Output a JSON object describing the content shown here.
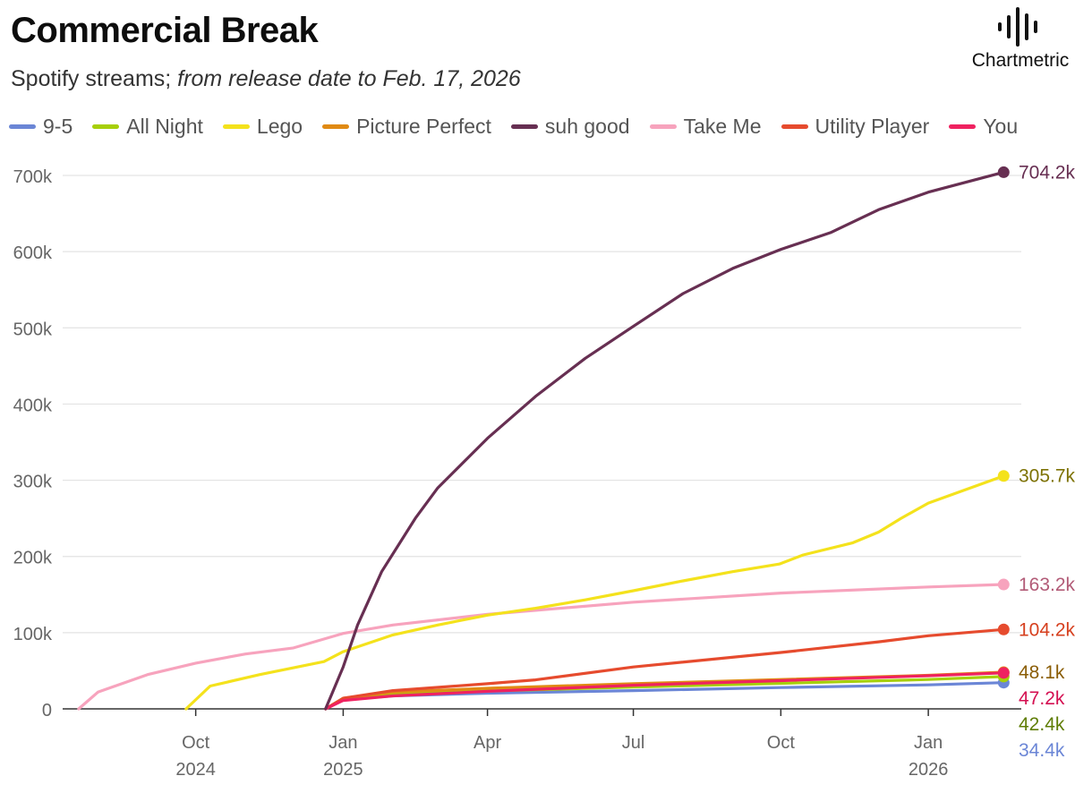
{
  "header": {
    "title": "Commercial Break",
    "subtitle_plain": "Spotify streams; ",
    "subtitle_italic": "from release date to Feb. 17, 2026"
  },
  "brand": {
    "name": "Chartmetric",
    "icon": "sound-wave-icon"
  },
  "chart_data": {
    "type": "line",
    "title": "Commercial Break",
    "xlabel": "",
    "ylabel": "",
    "ylim": [
      0,
      700000
    ],
    "yticks": [
      {
        "value": 0,
        "label": "0"
      },
      {
        "value": 100000,
        "label": "100k"
      },
      {
        "value": 200000,
        "label": "200k"
      },
      {
        "value": 300000,
        "label": "300k"
      },
      {
        "value": 400000,
        "label": "400k"
      },
      {
        "value": 500000,
        "label": "500k"
      },
      {
        "value": 600000,
        "label": "600k"
      },
      {
        "value": 700000,
        "label": "700k"
      }
    ],
    "xrange": [
      "2024-07-10",
      "2026-02-28"
    ],
    "xticks": [
      {
        "date": "2024-10-01",
        "month": "Oct",
        "year": "2024"
      },
      {
        "date": "2025-01-01",
        "month": "Jan",
        "year": "2025"
      },
      {
        "date": "2025-04-01",
        "month": "Apr",
        "year": ""
      },
      {
        "date": "2025-07-01",
        "month": "Jul",
        "year": ""
      },
      {
        "date": "2025-10-01",
        "month": "Oct",
        "year": ""
      },
      {
        "date": "2026-01-01",
        "month": "Jan",
        "year": "2026"
      }
    ],
    "grid": true,
    "legend_position": "top",
    "series": [
      {
        "name": "9-5",
        "color": "#6b86d6",
        "label_color": "#6b86d6",
        "end_label": "34.4k",
        "points": [
          [
            "2024-12-21",
            0
          ],
          [
            "2025-01-01",
            12000
          ],
          [
            "2025-02-01",
            17000
          ],
          [
            "2025-04-01",
            20500
          ],
          [
            "2025-07-01",
            24000
          ],
          [
            "2025-10-01",
            28000
          ],
          [
            "2026-01-01",
            31500
          ],
          [
            "2026-02-17",
            34400
          ]
        ]
      },
      {
        "name": "All Night",
        "color": "#a7cf0a",
        "label_color": "#5f7d05",
        "end_label": "42.4k",
        "points": [
          [
            "2024-12-21",
            0
          ],
          [
            "2025-01-01",
            13000
          ],
          [
            "2025-02-01",
            19000
          ],
          [
            "2025-04-01",
            23500
          ],
          [
            "2025-07-01",
            28500
          ],
          [
            "2025-10-01",
            33500
          ],
          [
            "2026-01-01",
            38500
          ],
          [
            "2026-02-17",
            42400
          ]
        ]
      },
      {
        "name": "Lego",
        "color": "#f4e21c",
        "label_color": "#7d7205",
        "end_label": "305.7k",
        "points": [
          [
            "2024-09-25",
            0
          ],
          [
            "2024-10-10",
            30000
          ],
          [
            "2024-11-10",
            45000
          ],
          [
            "2024-12-20",
            62000
          ],
          [
            "2025-01-01",
            75000
          ],
          [
            "2025-02-01",
            97000
          ],
          [
            "2025-03-01",
            110000
          ],
          [
            "2025-04-01",
            123000
          ],
          [
            "2025-05-01",
            132000
          ],
          [
            "2025-06-01",
            143000
          ],
          [
            "2025-07-01",
            155000
          ],
          [
            "2025-08-01",
            168000
          ],
          [
            "2025-09-01",
            180000
          ],
          [
            "2025-09-30",
            190000
          ],
          [
            "2025-10-15",
            202000
          ],
          [
            "2025-11-15",
            218000
          ],
          [
            "2025-12-01",
            232000
          ],
          [
            "2025-12-15",
            250000
          ],
          [
            "2026-01-01",
            270000
          ],
          [
            "2026-02-17",
            305700
          ]
        ]
      },
      {
        "name": "Picture Perfect",
        "color": "#e08a14",
        "label_color": "#8a5d06",
        "end_label": "48.1k",
        "points": [
          [
            "2024-12-21",
            0
          ],
          [
            "2025-01-01",
            14000
          ],
          [
            "2025-02-01",
            22000
          ],
          [
            "2025-04-01",
            27000
          ],
          [
            "2025-07-01",
            33000
          ],
          [
            "2025-10-01",
            38500
          ],
          [
            "2026-01-01",
            44000
          ],
          [
            "2026-02-17",
            48100
          ]
        ]
      },
      {
        "name": "suh good",
        "color": "#672f52",
        "label_color": "#672f52",
        "end_label": "704.2k",
        "points": [
          [
            "2024-12-21",
            0
          ],
          [
            "2024-12-25",
            20000
          ],
          [
            "2025-01-01",
            55000
          ],
          [
            "2025-01-10",
            110000
          ],
          [
            "2025-01-25",
            180000
          ],
          [
            "2025-02-15",
            250000
          ],
          [
            "2025-03-01",
            290000
          ],
          [
            "2025-04-01",
            355000
          ],
          [
            "2025-05-01",
            410000
          ],
          [
            "2025-06-01",
            460000
          ],
          [
            "2025-07-01",
            502000
          ],
          [
            "2025-08-01",
            545000
          ],
          [
            "2025-09-01",
            578000
          ],
          [
            "2025-10-01",
            603000
          ],
          [
            "2025-11-01",
            625000
          ],
          [
            "2025-12-01",
            655000
          ],
          [
            "2026-01-01",
            678000
          ],
          [
            "2026-02-17",
            704200
          ]
        ]
      },
      {
        "name": "Take Me",
        "color": "#f7a3bd",
        "label_color": "#b25b77",
        "end_label": "163.2k",
        "points": [
          [
            "2024-07-20",
            0
          ],
          [
            "2024-08-01",
            22000
          ],
          [
            "2024-09-01",
            45000
          ],
          [
            "2024-10-01",
            60000
          ],
          [
            "2024-11-01",
            72000
          ],
          [
            "2024-12-01",
            80000
          ],
          [
            "2025-01-01",
            99000
          ],
          [
            "2025-02-01",
            110000
          ],
          [
            "2025-04-01",
            124000
          ],
          [
            "2025-07-01",
            140000
          ],
          [
            "2025-10-01",
            152000
          ],
          [
            "2026-01-01",
            160000
          ],
          [
            "2026-02-17",
            163200
          ]
        ]
      },
      {
        "name": "Utility Player",
        "color": "#e64b2e",
        "label_color": "#d6401f",
        "end_label": "104.2k",
        "points": [
          [
            "2024-12-21",
            0
          ],
          [
            "2025-01-01",
            14000
          ],
          [
            "2025-02-01",
            24000
          ],
          [
            "2025-04-01",
            33000
          ],
          [
            "2025-05-01",
            38000
          ],
          [
            "2025-07-01",
            55000
          ],
          [
            "2025-10-01",
            74000
          ],
          [
            "2025-12-01",
            88000
          ],
          [
            "2026-01-01",
            96000
          ],
          [
            "2026-02-17",
            104200
          ]
        ]
      },
      {
        "name": "You",
        "color": "#ef2260",
        "label_color": "#d40f51",
        "end_label": "47.2k",
        "points": [
          [
            "2024-12-21",
            0
          ],
          [
            "2025-01-01",
            11000
          ],
          [
            "2025-02-01",
            17000
          ],
          [
            "2025-04-01",
            23000
          ],
          [
            "2025-07-01",
            31000
          ],
          [
            "2025-10-01",
            37000
          ],
          [
            "2026-01-01",
            43500
          ],
          [
            "2026-02-17",
            47200
          ]
        ]
      }
    ]
  }
}
